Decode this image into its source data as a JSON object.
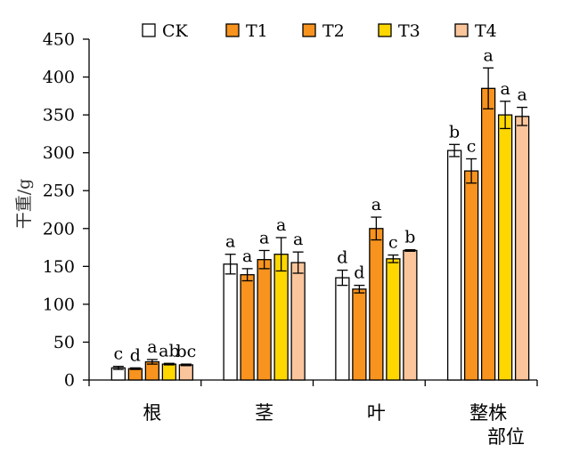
{
  "chart_data": {
    "type": "bar",
    "title": "",
    "ylabel": "干重/g",
    "xlabel": "部位",
    "ylim": [
      0,
      450
    ],
    "yticks": [
      0,
      50,
      100,
      150,
      200,
      250,
      300,
      350,
      400,
      450
    ],
    "categories": [
      "根",
      "茎",
      "叶",
      "整株"
    ],
    "legend_position": "top",
    "grid": false,
    "series": [
      {
        "name": "CK",
        "color": "#ffffff",
        "values": [
          16,
          153,
          135,
          303
        ],
        "errors": [
          2,
          13,
          10,
          8
        ],
        "labels": [
          "c",
          "a",
          "d",
          "b"
        ]
      },
      {
        "name": "T1",
        "color": "#f7931e",
        "values": [
          15,
          139,
          120,
          276
        ],
        "errors": [
          1,
          8,
          5,
          16
        ],
        "labels": [
          "d",
          "a",
          "d",
          "c"
        ]
      },
      {
        "name": "T2",
        "color": "#f7931e",
        "values": [
          24,
          159,
          200,
          385
        ],
        "errors": [
          3,
          12,
          15,
          27
        ],
        "labels": [
          "a",
          "a",
          "a",
          "a"
        ]
      },
      {
        "name": "T3",
        "color": "#ffd700",
        "values": [
          21,
          166,
          160,
          350
        ],
        "errors": [
          1,
          22,
          5,
          18
        ],
        "labels": [
          "ab",
          "a",
          "c",
          "a"
        ]
      },
      {
        "name": "T4",
        "color": "#fbc59c",
        "values": [
          20,
          155,
          171,
          348
        ],
        "errors": [
          1,
          14,
          1,
          12
        ],
        "labels": [
          "bc",
          "a",
          "b",
          "a"
        ]
      }
    ]
  }
}
